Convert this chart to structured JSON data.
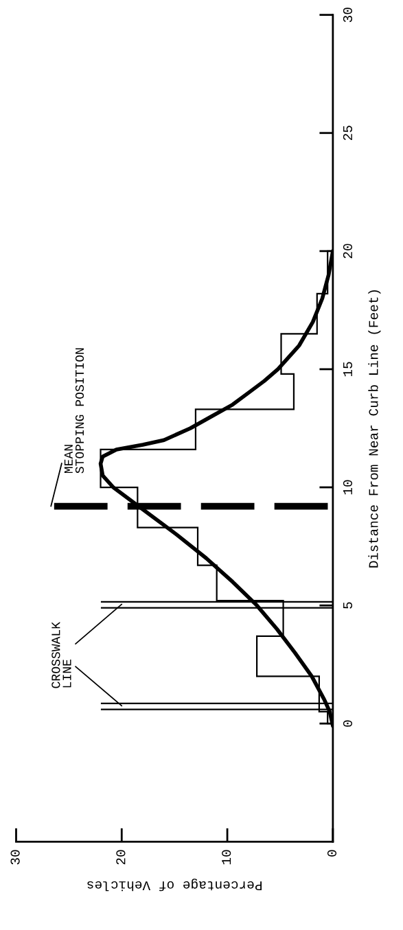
{
  "chart_data": {
    "type": "histogram",
    "orientation": "horizontal",
    "xlabel": "Percentage of Vehicles",
    "ylabel": "Distance From Near Curb Line (Feet)",
    "bins": [
      0,
      0.5,
      2.0,
      3.7,
      5.2,
      6.7,
      8.3,
      10.0,
      11.6,
      13.3,
      14.8,
      16.5,
      18.2,
      20.0
    ],
    "values": [
      0.5,
      1.3,
      7.2,
      4.7,
      11,
      12.8,
      18.5,
      22,
      13,
      3.7,
      4.9,
      1.5,
      0.5
    ],
    "color": "#000000",
    "series": [
      {
        "type": "line",
        "color": "#000000",
        "x": [
          -0.1,
          0.5,
          1,
          2,
          3,
          4,
          5,
          6,
          7,
          8,
          9,
          9.5,
          10,
          10.5,
          11,
          11.3,
          11.6,
          11.8,
          12,
          12.5,
          13,
          13.5,
          14,
          14.5,
          15,
          16,
          17,
          18,
          19,
          20
        ],
        "values": [
          0,
          0.3,
          0.8,
          2,
          3.6,
          5.3,
          7.2,
          9.5,
          12,
          14.8,
          17.8,
          19.3,
          20.8,
          21.8,
          22,
          21.8,
          20.5,
          18,
          16,
          13.5,
          11.5,
          9.5,
          8,
          6.5,
          5.2,
          3.2,
          1.9,
          1,
          0.4,
          0
        ]
      }
    ],
    "ref_lines": [
      {
        "axis": "y",
        "value": 9.2,
        "label": "MEAN\nSTOPPING POSITION",
        "line_style": "dashed",
        "color": "#000000"
      },
      {
        "axis": "y",
        "value": 0.6,
        "color": "#000000"
      },
      {
        "axis": "y",
        "value": 0.85,
        "color": "#000000"
      },
      {
        "axis": "y",
        "value": 4.9,
        "color": "#000000"
      },
      {
        "axis": "y",
        "value": 5.15,
        "color": "#000000"
      }
    ],
    "annotations": [
      {
        "text": "CROSSWALK\nLINE",
        "x": 20,
        "y": 0.75
      }
    ],
    "xlim": [
      30,
      0
    ],
    "xticks": [
      0,
      10,
      20,
      30
    ],
    "ylim": [
      -5,
      30
    ],
    "yticks": [
      0,
      5,
      10,
      15,
      20,
      25,
      30
    ],
    "grid": false,
    "legend": false
  }
}
